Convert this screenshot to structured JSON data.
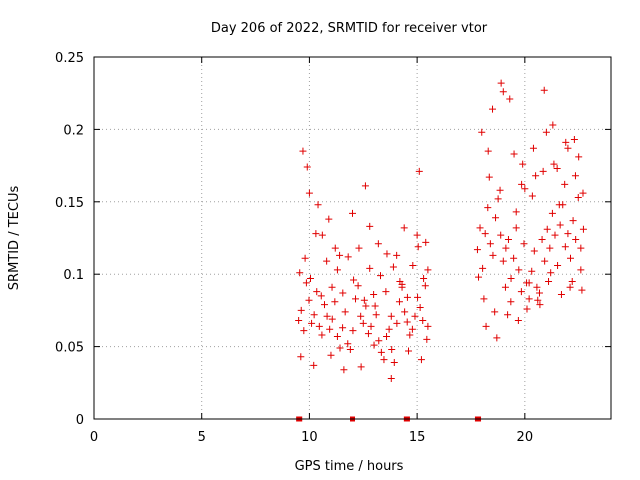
{
  "chart_data": {
    "type": "scatter",
    "title": "Day 206 of 2022, SRMTID for receiver vtor",
    "xlabel": "GPS time / hours",
    "ylabel": "SRMTID / TECUs",
    "xlim": [
      0,
      24
    ],
    "ylim": [
      0,
      0.25
    ],
    "xticks": [
      "0",
      "5",
      "10",
      "15",
      "20"
    ],
    "yticks": [
      "0",
      "0.05",
      "0.1",
      "0.15",
      "0.2",
      "0.25"
    ],
    "grid": true,
    "marker": "+",
    "color": "#e00000",
    "series": [
      {
        "x": [
          9.5,
          9.62,
          9.74,
          9.86,
          9.98,
          10.1,
          10.22,
          10.34,
          10.46,
          10.58,
          10.7,
          10.82,
          10.94,
          11.06,
          11.18,
          11.3,
          11.42,
          11.54,
          11.66,
          11.78,
          11.9,
          12.02,
          12.14,
          12.26,
          12.38,
          12.5,
          12.62,
          12.74,
          12.86,
          12.98,
          13.1,
          13.22,
          13.34,
          13.46,
          13.58,
          13.7,
          13.82,
          13.94,
          14.06,
          14.18,
          14.3,
          14.42,
          14.54,
          14.66,
          14.78,
          14.9,
          15.02,
          15.14,
          15.26,
          15.38,
          15.5,
          9.55,
          9.8,
          10.05,
          10.3,
          10.55,
          10.8,
          11.05,
          11.3,
          11.55,
          11.8,
          12.05,
          12.3,
          12.55,
          12.8,
          13.05,
          13.3,
          13.55,
          13.8,
          14.05,
          14.3,
          14.55,
          14.8,
          15.05,
          15.3,
          9.9,
          10.4,
          10.9,
          11.4,
          12.6,
          13.2,
          13.9,
          14.4,
          15.1,
          15.4,
          9.7,
          10.0,
          10.6,
          11.2,
          12.0,
          12.8,
          13.6,
          14.2,
          15.0,
          15.5,
          9.6,
          10.2,
          11.0,
          11.6,
          12.4,
          13.0,
          13.8,
          14.6,
          15.2,
          15.45
        ],
        "y": [
          0.068,
          0.075,
          0.061,
          0.094,
          0.082,
          0.066,
          0.072,
          0.088,
          0.064,
          0.058,
          0.079,
          0.071,
          0.062,
          0.069,
          0.081,
          0.057,
          0.049,
          0.063,
          0.074,
          0.052,
          0.048,
          0.061,
          0.083,
          0.092,
          0.071,
          0.066,
          0.078,
          0.059,
          0.064,
          0.086,
          0.072,
          0.054,
          0.046,
          0.041,
          0.057,
          0.062,
          0.048,
          0.039,
          0.066,
          0.081,
          0.093,
          0.074,
          0.067,
          0.058,
          0.062,
          0.071,
          0.084,
          0.077,
          0.068,
          0.092,
          0.064,
          0.101,
          0.111,
          0.097,
          0.128,
          0.085,
          0.109,
          0.091,
          0.103,
          0.087,
          0.112,
          0.096,
          0.118,
          0.082,
          0.104,
          0.078,
          0.099,
          0.088,
          0.071,
          0.113,
          0.091,
          0.084,
          0.106,
          0.119,
          0.097,
          0.174,
          0.148,
          0.138,
          0.113,
          0.161,
          0.121,
          0.105,
          0.132,
          0.171,
          0.122,
          0.185,
          0.156,
          0.127,
          0.118,
          0.142,
          0.133,
          0.114,
          0.095,
          0.127,
          0.103,
          0.043,
          0.037,
          0.044,
          0.034,
          0.036,
          0.051,
          0.028,
          0.047,
          0.041,
          0.055
        ]
      },
      {
        "x": [
          17.8,
          17.92,
          18.04,
          18.16,
          18.28,
          18.4,
          18.52,
          18.64,
          18.76,
          18.88,
          19.0,
          19.12,
          19.24,
          19.36,
          19.48,
          19.6,
          19.72,
          19.84,
          19.96,
          20.08,
          20.2,
          20.32,
          20.44,
          20.56,
          20.68,
          20.8,
          20.92,
          21.04,
          21.16,
          21.28,
          21.4,
          21.52,
          21.64,
          21.76,
          21.88,
          22.0,
          22.12,
          22.24,
          22.36,
          22.48,
          22.6,
          22.72,
          17.85,
          18.1,
          18.35,
          18.6,
          18.85,
          19.1,
          19.35,
          19.6,
          19.85,
          20.1,
          20.35,
          20.6,
          20.85,
          21.1,
          21.35,
          21.6,
          21.85,
          22.1,
          22.35,
          22.6,
          18.0,
          18.5,
          19.0,
          19.5,
          20.0,
          20.5,
          21.0,
          21.5,
          22.0,
          22.5,
          18.2,
          18.7,
          19.2,
          19.7,
          20.2,
          20.7,
          21.2,
          21.7,
          22.2,
          22.65,
          18.3,
          18.9,
          19.3,
          19.9,
          20.4,
          20.9,
          21.3,
          21.9,
          22.3,
          22.7
        ],
        "y": [
          0.117,
          0.132,
          0.104,
          0.128,
          0.146,
          0.121,
          0.113,
          0.139,
          0.152,
          0.127,
          0.109,
          0.118,
          0.124,
          0.097,
          0.111,
          0.132,
          0.103,
          0.088,
          0.121,
          0.094,
          0.083,
          0.102,
          0.116,
          0.091,
          0.087,
          0.124,
          0.109,
          0.131,
          0.118,
          0.142,
          0.127,
          0.106,
          0.134,
          0.148,
          0.119,
          0.128,
          0.111,
          0.137,
          0.124,
          0.153,
          0.118,
          0.131,
          0.098,
          0.083,
          0.167,
          0.074,
          0.158,
          0.091,
          0.081,
          0.143,
          0.162,
          0.076,
          0.154,
          0.082,
          0.171,
          0.095,
          0.176,
          0.148,
          0.162,
          0.091,
          0.168,
          0.103,
          0.198,
          0.214,
          0.226,
          0.183,
          0.159,
          0.168,
          0.198,
          0.173,
          0.187,
          0.181,
          0.064,
          0.056,
          0.072,
          0.068,
          0.094,
          0.079,
          0.101,
          0.086,
          0.095,
          0.089,
          0.185,
          0.232,
          0.221,
          0.176,
          0.187,
          0.227,
          0.203,
          0.191,
          0.193,
          0.156
        ]
      }
    ],
    "baseline_markers": [
      9.5,
      9.55,
      12.0,
      14.5,
      14.55,
      17.8,
      17.85
    ]
  }
}
